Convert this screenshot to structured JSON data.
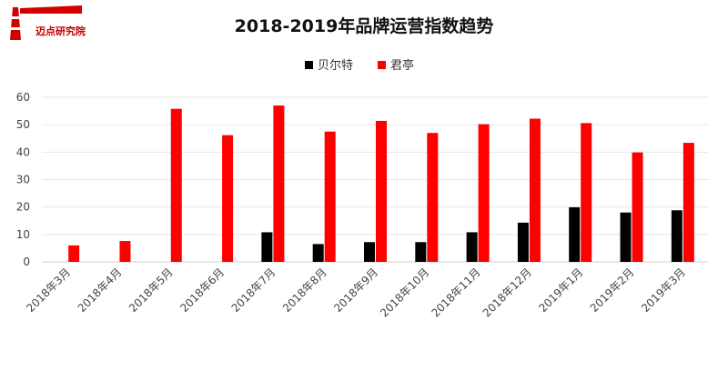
{
  "logo": {
    "text": "迈点研究院"
  },
  "chart_data": {
    "type": "bar",
    "title": "2018-2019年品牌运营指数趋势",
    "xlabel": "",
    "ylabel": "",
    "ylim": [
      0,
      60
    ],
    "yticks": [
      0,
      10,
      20,
      30,
      40,
      50,
      60
    ],
    "grid": true,
    "legend_position": "top",
    "categories": [
      "2018年3月",
      "2018年4月",
      "2018年5月",
      "2018年6月",
      "2018年7月",
      "2018年8月",
      "2018年9月",
      "2018年10月",
      "2018年11月",
      "2018年12月",
      "2019年1月",
      "2019年2月",
      "2019年3月"
    ],
    "series": [
      {
        "name": "贝尔特",
        "color": "#000000",
        "values": [
          0,
          0,
          0,
          0,
          10.8,
          6.5,
          7.2,
          7.2,
          10.8,
          14.3,
          19.9,
          18.0,
          18.8
        ]
      },
      {
        "name": "君亭",
        "color": "#ff0000",
        "values": [
          6.0,
          7.6,
          55.8,
          46.2,
          57.0,
          47.5,
          51.4,
          47.0,
          50.2,
          52.2,
          50.6,
          39.9,
          43.4
        ]
      }
    ]
  }
}
